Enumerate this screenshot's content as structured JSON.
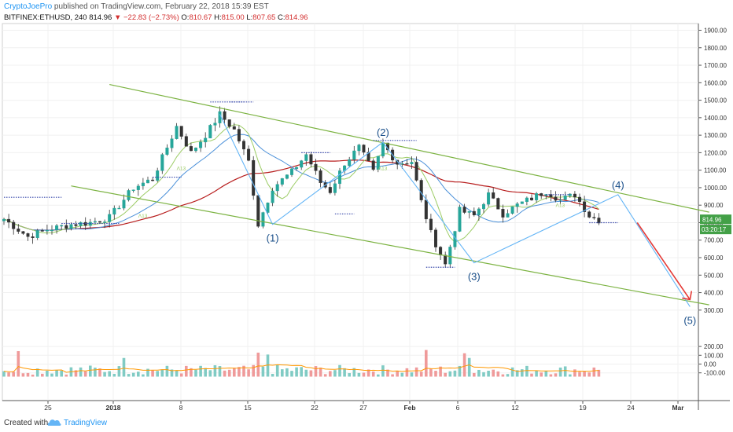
{
  "header": {
    "author": "CryptoJoePro",
    "published": "published on TradingView.com, February 22, 2018 15:39 EST",
    "symbol": "BITFINEX:ETHUSD, 240",
    "last": "814.96",
    "arrow": "▼",
    "change": "−22.83 (−2.73%)",
    "o_label": "O:",
    "o_val": "810.67",
    "h_label": "H:",
    "h_val": "815.00",
    "l_label": "L:",
    "l_val": "807.65",
    "c_label": "C:",
    "c_val": "814.96"
  },
  "footer": {
    "created": "Created with",
    "brand": "TradingView"
  },
  "colors": {
    "up": "#26a69a",
    "down": "#ef5350",
    "vol_up": "#80cbc4",
    "vol_down": "#ef9a9a",
    "channel": "#7cb342",
    "wave": "#64b5f6",
    "ma_red": "#b71c1c",
    "ma_blue": "#4a90d9",
    "ma_green": "#9ccc65",
    "vol_ma": "#ff9800",
    "arrow": "#e53935",
    "label_green": "#43a047"
  },
  "chart_data": {
    "type": "candlestick",
    "ylim": [
      -180,
      1950
    ],
    "price_ticks": [
      "1900.00",
      "1800.00",
      "1700.00",
      "1600.00",
      "1500.00",
      "1400.00",
      "1300.00",
      "1200.00",
      "1100.00",
      "1000.00",
      "900.00",
      "800.00",
      "700.00",
      "600.00",
      "500.00",
      "400.00",
      "300.00"
    ],
    "volume_ticks": [
      "200.00",
      "100.00",
      "0.00",
      "-100.00"
    ],
    "x_ticks": [
      "25",
      "2018",
      "8",
      "15",
      "22",
      "27",
      "Feb",
      "6",
      "12",
      "19",
      "24",
      "Mar"
    ],
    "last_price_label": "814.96",
    "countdown_label": "03:20:17",
    "price_anchors": [
      [
        0,
        820
      ],
      [
        5,
        720
      ],
      [
        9,
        760
      ],
      [
        14,
        790
      ],
      [
        18,
        800
      ],
      [
        22,
        830
      ],
      [
        27,
        1000
      ],
      [
        31,
        1050
      ],
      [
        36,
        1350
      ],
      [
        39,
        1200
      ],
      [
        42,
        1300
      ],
      [
        45,
        1420
      ],
      [
        48,
        1330
      ],
      [
        51,
        1150
      ],
      [
        53,
        790
      ],
      [
        56,
        1000
      ],
      [
        60,
        1090
      ],
      [
        63,
        1190
      ],
      [
        66,
        1030
      ],
      [
        68,
        980
      ],
      [
        71,
        1140
      ],
      [
        74,
        1230
      ],
      [
        77,
        1090
      ],
      [
        79,
        1250
      ],
      [
        82,
        1140
      ],
      [
        85,
        1150
      ],
      [
        87,
        920
      ],
      [
        89,
        740
      ],
      [
        92,
        560
      ],
      [
        95,
        870
      ],
      [
        98,
        840
      ],
      [
        101,
        960
      ],
      [
        104,
        850
      ],
      [
        107,
        900
      ],
      [
        110,
        940
      ],
      [
        113,
        980
      ],
      [
        116,
        930
      ],
      [
        119,
        960
      ],
      [
        122,
        840
      ],
      [
        124,
        815
      ]
    ],
    "wave_labels": [
      "(1)",
      "(2)",
      "(3)",
      "(4)",
      "(5)"
    ],
    "wave_points": [
      [
        56,
        790
      ],
      [
        79,
        1260
      ],
      [
        98,
        570
      ],
      [
        128,
        960
      ],
      [
        143,
        320
      ]
    ],
    "channel_upper": [
      [
        22,
        1590
      ],
      [
        147,
        860
      ]
    ],
    "channel_lower": [
      [
        14,
        1010
      ],
      [
        147,
        330
      ]
    ],
    "indicator_labels": [
      "Λ13",
      "Λ13",
      "Λ13",
      "Λ13"
    ],
    "forecast_arrow": [
      [
        132,
        800
      ],
      [
        143,
        360
      ]
    ]
  }
}
